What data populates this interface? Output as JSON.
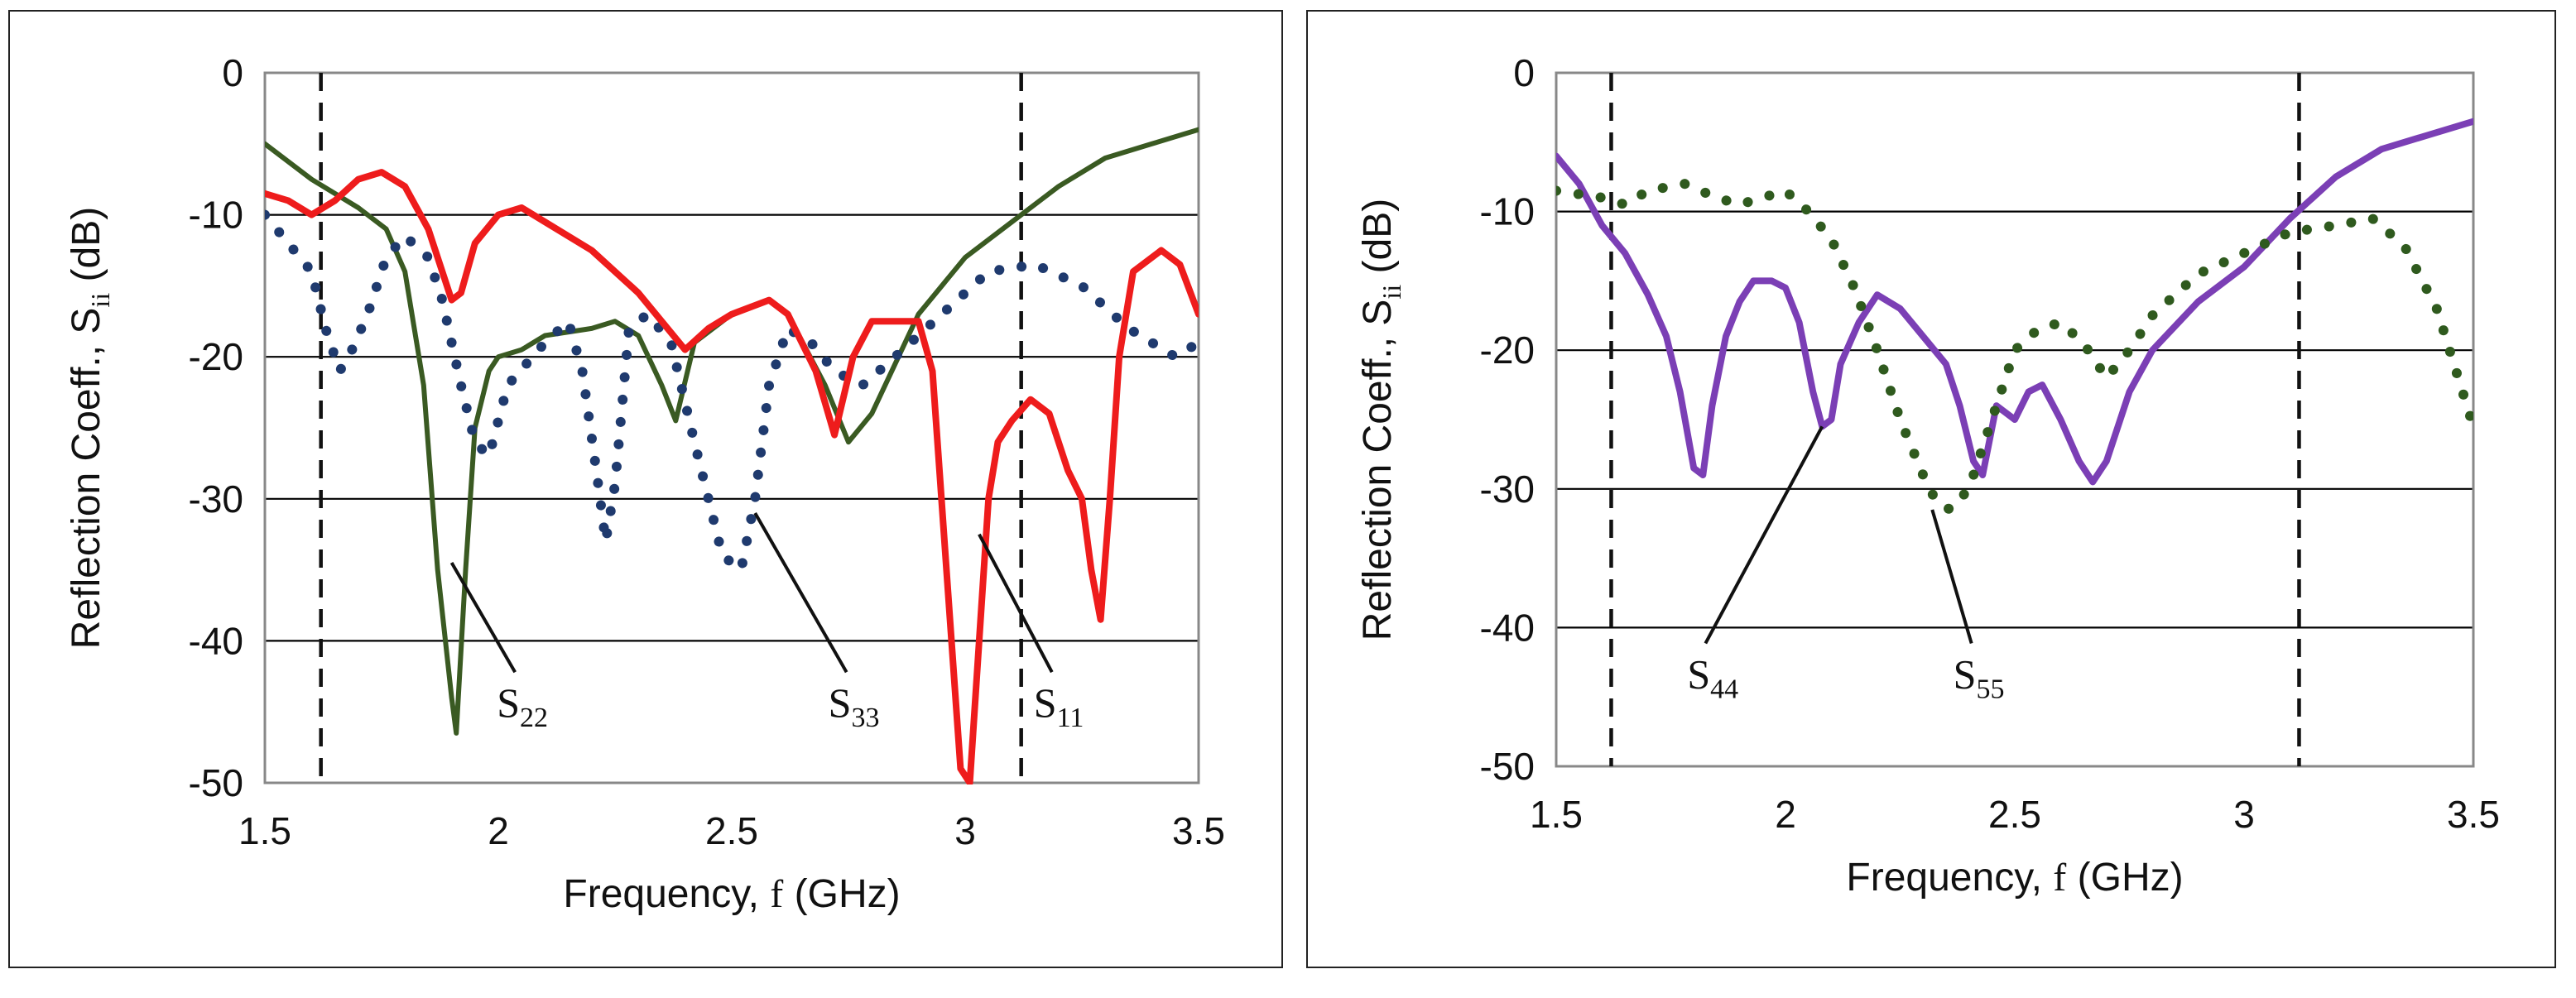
{
  "chart_data": [
    {
      "type": "line",
      "title": "",
      "xlabel": "Frequency,",
      "xlabel_var": "f",
      "xlabel_unit": "(GHz)",
      "ylabel": "Reflection Coeff., S",
      "ylabel_sub": "ii",
      "ylabel_unit": "(dB)",
      "xlim": [
        1.5,
        3.5
      ],
      "ylim": [
        -50,
        0
      ],
      "xticks": [
        "1.5",
        "2",
        "2.5",
        "3",
        "3.5"
      ],
      "xtick_values": [
        1.5,
        2,
        2.5,
        3,
        3.5
      ],
      "yticks": [
        "0",
        "-10",
        "-20",
        "-30",
        "-40",
        "-50"
      ],
      "ytick_values": [
        0,
        -10,
        -20,
        -30,
        -40,
        -50
      ],
      "grid": "horizontal",
      "vlines": [
        1.62,
        3.12
      ],
      "series": [
        {
          "name": "S22",
          "color": "#3a5a22",
          "style": "solid",
          "x": [
            1.5,
            1.6,
            1.7,
            1.76,
            1.8,
            1.84,
            1.87,
            1.9,
            1.91,
            1.93,
            1.95,
            1.98,
            2.0,
            2.05,
            2.1,
            2.2,
            2.25,
            2.3,
            2.35,
            2.38,
            2.42,
            2.5,
            2.58,
            2.62,
            2.7,
            2.75,
            2.8,
            2.9,
            3.0,
            3.1,
            3.2,
            3.3,
            3.4,
            3.5
          ],
          "y": [
            -5,
            -7.5,
            -9.5,
            -11,
            -14,
            -22,
            -35,
            -44,
            -46.5,
            -35,
            -25,
            -21,
            -20,
            -19.5,
            -18.5,
            -18,
            -17.5,
            -18.5,
            -22,
            -24.5,
            -19,
            -17,
            -16,
            -17,
            -22,
            -26,
            -24,
            -17,
            -13,
            -10.5,
            -8,
            -6,
            -5,
            -4
          ]
        },
        {
          "name": "S33",
          "color": "#1f3a6e",
          "style": "dotted",
          "x": [
            1.5,
            1.55,
            1.6,
            1.63,
            1.66,
            1.68,
            1.72,
            1.76,
            1.8,
            1.85,
            1.88,
            1.92,
            1.95,
            1.98,
            2.02,
            2.1,
            2.15,
            2.18,
            2.21,
            2.23,
            2.25,
            2.28,
            2.32,
            2.37,
            2.42,
            2.48,
            2.52,
            2.55,
            2.58,
            2.62,
            2.67,
            2.72,
            2.78,
            2.85,
            2.95,
            3.05,
            3.15,
            3.25,
            3.35,
            3.45,
            3.5
          ],
          "y": [
            -10,
            -12,
            -14,
            -18,
            -21,
            -20,
            -17,
            -13,
            -11.5,
            -13,
            -16,
            -22,
            -26,
            -27,
            -22,
            -19,
            -17.5,
            -21,
            -28,
            -33,
            -29,
            -18,
            -17,
            -19,
            -26,
            -34,
            -35,
            -30,
            -22,
            -18,
            -19,
            -21,
            -22,
            -20,
            -17,
            -14,
            -13.5,
            -15,
            -18,
            -20,
            -19
          ]
        },
        {
          "name": "S11",
          "color": "#ee1c1c",
          "style": "solid",
          "x": [
            1.5,
            1.55,
            1.6,
            1.65,
            1.7,
            1.75,
            1.8,
            1.85,
            1.88,
            1.9,
            1.92,
            1.95,
            2.0,
            2.05,
            2.1,
            2.2,
            2.3,
            2.4,
            2.45,
            2.5,
            2.58,
            2.62,
            2.68,
            2.72,
            2.76,
            2.8,
            2.9,
            2.93,
            2.96,
            2.99,
            3.01,
            3.03,
            3.05,
            3.07,
            3.1,
            3.14,
            3.18,
            3.22,
            3.25,
            3.27,
            3.29,
            3.31,
            3.33,
            3.36,
            3.42,
            3.46,
            3.5
          ],
          "y": [
            -8.5,
            -9,
            -10,
            -9,
            -7.5,
            -7,
            -8,
            -11,
            -14,
            -16,
            -15.5,
            -12,
            -10,
            -9.5,
            -10.5,
            -12.5,
            -15.5,
            -19.5,
            -18,
            -17,
            -16,
            -17,
            -21,
            -25.5,
            -20,
            -17.5,
            -17.5,
            -21,
            -35,
            -49,
            -50,
            -40,
            -30,
            -26,
            -24.5,
            -23,
            -24,
            -28,
            -30,
            -35,
            -38.5,
            -30,
            -20,
            -14,
            -12.5,
            -13.5,
            -17
          ]
        }
      ],
      "annotations": [
        {
          "label": "S",
          "sub": "22",
          "series": "S22",
          "point": [
            1.9,
            -34.5
          ],
          "text_at": [
            2.05,
            -45
          ]
        },
        {
          "label": "S",
          "sub": "33",
          "series": "S33",
          "point": [
            2.55,
            -31
          ],
          "text_at": [
            2.76,
            -45
          ]
        },
        {
          "label": "S",
          "sub": "11",
          "series": "S11",
          "point": [
            3.03,
            -32.5
          ],
          "text_at": [
            3.2,
            -45
          ]
        }
      ]
    },
    {
      "type": "line",
      "title": "",
      "xlabel": "Frequency,",
      "xlabel_var": "f",
      "xlabel_unit": "(GHz)",
      "ylabel": "Reflection Coeff., S",
      "ylabel_sub": "ii",
      "ylabel_unit": "(dB)",
      "xlim": [
        1.5,
        3.5
      ],
      "ylim": [
        -50,
        0
      ],
      "xticks": [
        "1.5",
        "2",
        "2.5",
        "3",
        "3.5"
      ],
      "xtick_values": [
        1.5,
        2,
        2.5,
        3,
        3.5
      ],
      "yticks": [
        "0",
        "-10",
        "-20",
        "-30",
        "-40",
        "-50"
      ],
      "ytick_values": [
        0,
        -10,
        -20,
        -30,
        -40,
        -50
      ],
      "grid": "horizontal",
      "vlines": [
        1.62,
        3.12
      ],
      "series": [
        {
          "name": "S44",
          "color": "#7b3fb5",
          "style": "solid",
          "x": [
            1.5,
            1.55,
            1.6,
            1.65,
            1.7,
            1.74,
            1.77,
            1.8,
            1.82,
            1.84,
            1.87,
            1.9,
            1.93,
            1.97,
            2.0,
            2.03,
            2.06,
            2.08,
            2.1,
            2.12,
            2.16,
            2.2,
            2.25,
            2.3,
            2.35,
            2.38,
            2.41,
            2.43,
            2.46,
            2.5,
            2.53,
            2.56,
            2.6,
            2.64,
            2.67,
            2.7,
            2.75,
            2.8,
            2.9,
            3.0,
            3.1,
            3.2,
            3.3,
            3.4,
            3.5
          ],
          "y": [
            -6,
            -8,
            -11,
            -13,
            -16,
            -19,
            -23,
            -28.5,
            -29,
            -24,
            -19,
            -16.5,
            -15,
            -15,
            -15.5,
            -18,
            -23,
            -25.5,
            -25,
            -21,
            -18,
            -16,
            -17,
            -19,
            -21,
            -24,
            -28,
            -29,
            -24,
            -25,
            -23,
            -22.5,
            -25,
            -28,
            -29.5,
            -28,
            -23,
            -20,
            -16.5,
            -14,
            -10.5,
            -7.5,
            -5.5,
            -4.5,
            -3.5
          ]
        },
        {
          "name": "S55",
          "color": "#2f5a1e",
          "style": "dotted",
          "x": [
            1.5,
            1.6,
            1.65,
            1.7,
            1.78,
            1.85,
            1.9,
            1.95,
            2.0,
            2.05,
            2.1,
            2.15,
            2.2,
            2.25,
            2.3,
            2.33,
            2.36,
            2.4,
            2.45,
            2.5,
            2.55,
            2.6,
            2.65,
            2.7,
            2.75,
            2.8,
            2.9,
            3.0,
            3.1,
            3.2,
            3.28,
            3.35,
            3.42,
            3.5
          ],
          "y": [
            -8.5,
            -9,
            -9.5,
            -8.5,
            -8,
            -9,
            -9.5,
            -9,
            -8.5,
            -10,
            -12,
            -15.5,
            -20,
            -25,
            -29,
            -31,
            -31.5,
            -30,
            -25,
            -20,
            -18.5,
            -18,
            -19.5,
            -22,
            -20,
            -17.5,
            -14.5,
            -13,
            -11.5,
            -11,
            -10.5,
            -12.5,
            -17,
            -25.5
          ]
        }
      ],
      "annotations": [
        {
          "label": "S",
          "sub": "44",
          "series": "S44",
          "point": [
            2.08,
            -25.5
          ],
          "text_at": [
            1.84,
            -44
          ]
        },
        {
          "label": "S",
          "sub": "55",
          "series": "S55",
          "point": [
            2.32,
            -31.5
          ],
          "text_at": [
            2.42,
            -44
          ]
        }
      ]
    }
  ]
}
